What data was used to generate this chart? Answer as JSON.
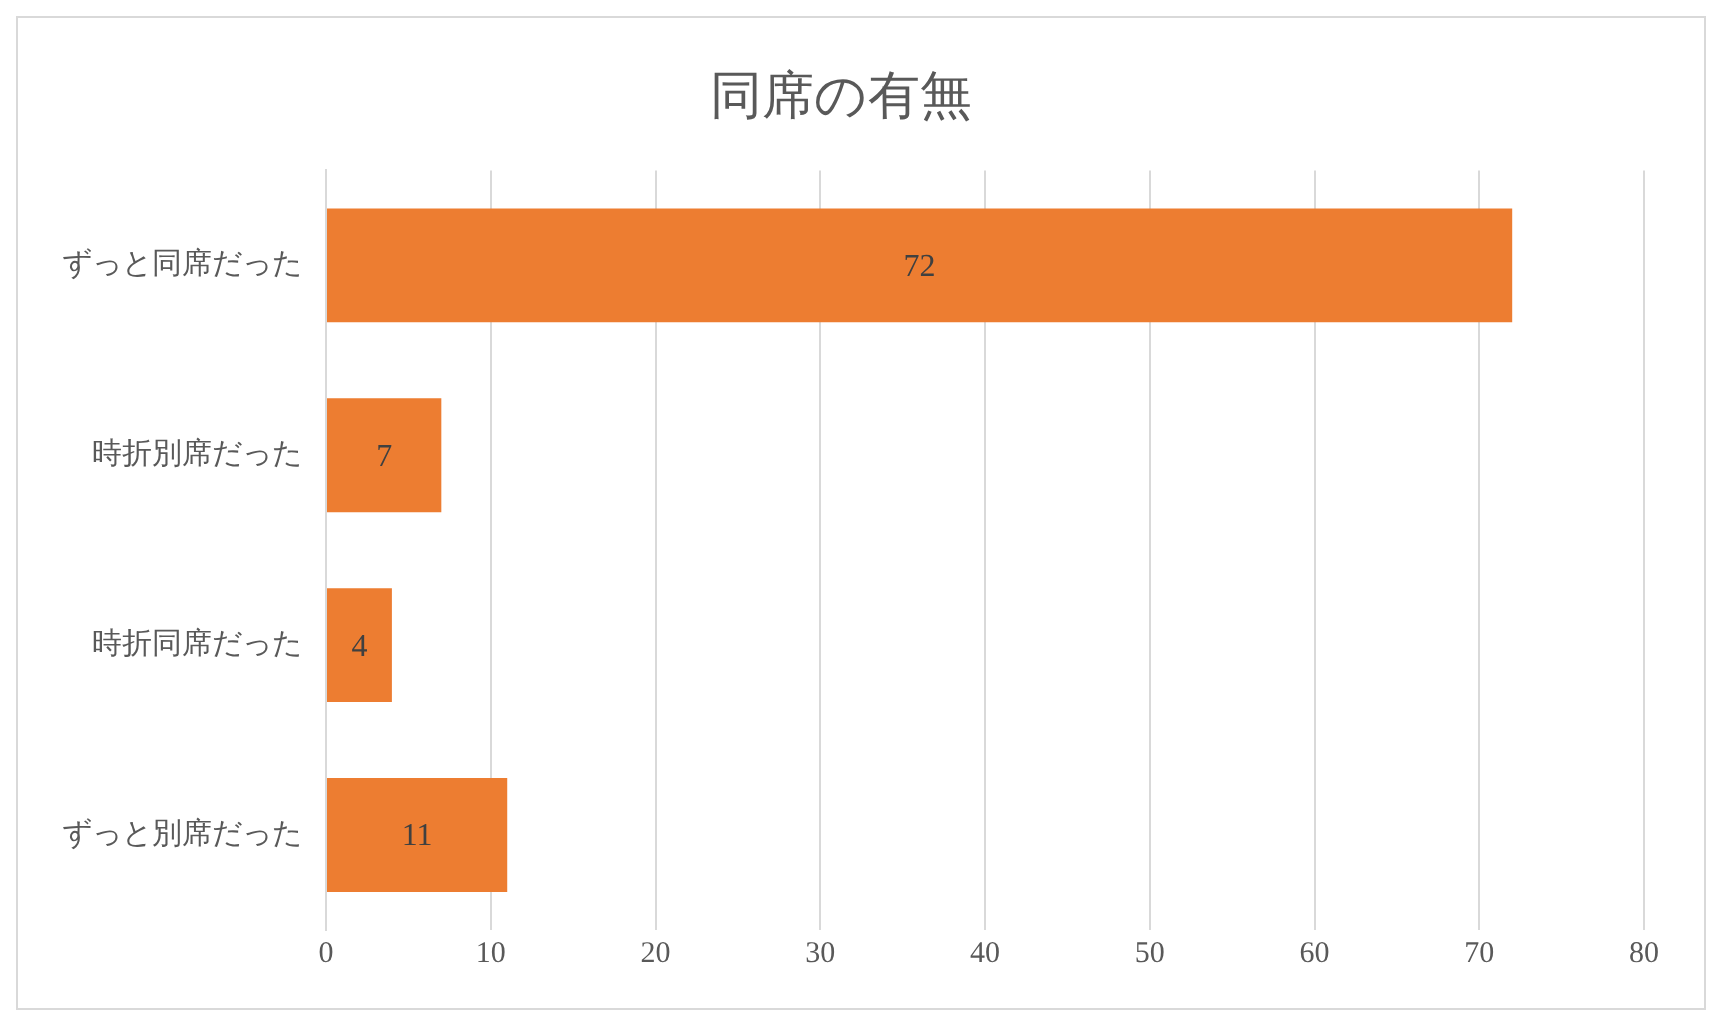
{
  "chart_data": {
    "type": "bar",
    "title": "同席の有無",
    "orientation": "horizontal",
    "categories": [
      "ずっと同席だった",
      "時折別席だった",
      "時折同席だった",
      "ずっと別席だった"
    ],
    "values": [
      72,
      7,
      4,
      11
    ],
    "color": "#ed7d31",
    "xlim": [
      0,
      80
    ],
    "xticks": [
      0,
      10,
      20,
      30,
      40,
      50,
      60,
      70,
      80
    ],
    "grid": "x",
    "data_labels": true
  }
}
